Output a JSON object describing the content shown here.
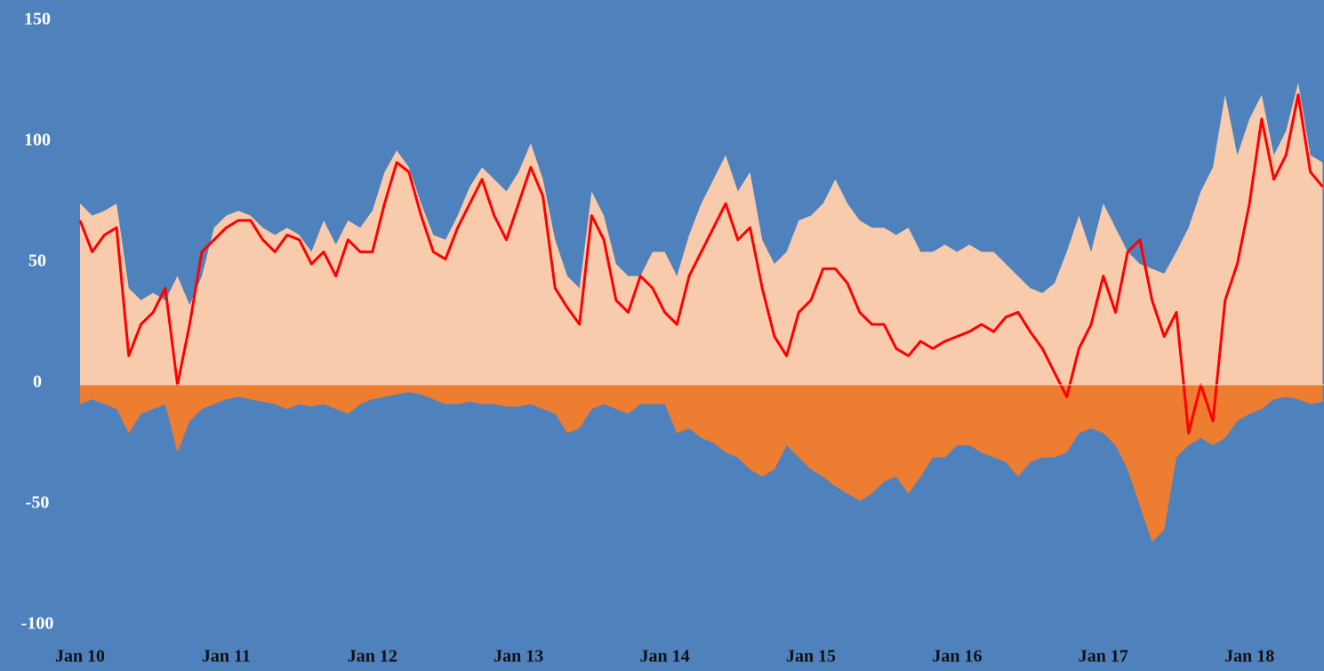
{
  "chart_data": {
    "type": "area-line",
    "categories": [
      "Jan 10",
      null,
      null,
      null,
      null,
      null,
      null,
      null,
      null,
      null,
      null,
      null,
      "Jan 11",
      null,
      null,
      null,
      null,
      null,
      null,
      null,
      null,
      null,
      null,
      null,
      "Jan 12",
      null,
      null,
      null,
      null,
      null,
      null,
      null,
      null,
      null,
      null,
      null,
      "Jan 13",
      null,
      null,
      null,
      null,
      null,
      null,
      null,
      null,
      null,
      null,
      null,
      "Jan 14",
      null,
      null,
      null,
      null,
      null,
      null,
      null,
      null,
      null,
      null,
      null,
      "Jan 15",
      null,
      null,
      null,
      null,
      null,
      null,
      null,
      null,
      null,
      null,
      null,
      "Jan 16",
      null,
      null,
      null,
      null,
      null,
      null,
      null,
      null,
      null,
      null,
      null,
      "Jan 17",
      null,
      null,
      null,
      null,
      null,
      null,
      null,
      null,
      null,
      null,
      null,
      "Jan 18",
      null,
      null,
      null,
      null,
      null,
      null
    ],
    "series": [
      {
        "kind": "area",
        "color": "#f8cbad",
        "values": [
          75,
          70,
          72,
          75,
          40,
          35,
          38,
          35,
          45,
          33,
          45,
          65,
          70,
          72,
          70,
          65,
          62,
          65,
          62,
          55,
          68,
          58,
          68,
          65,
          72,
          88,
          97,
          90,
          75,
          62,
          60,
          70,
          82,
          90,
          85,
          80,
          88,
          100,
          85,
          60,
          45,
          40,
          80,
          70,
          50,
          45,
          45,
          55,
          55,
          45,
          62,
          75,
          85,
          95,
          80,
          88,
          60,
          50,
          55,
          68,
          70,
          75,
          85,
          75,
          68,
          65,
          65,
          62,
          65,
          55,
          55,
          58,
          55,
          58,
          55,
          55,
          50,
          45,
          40,
          38,
          42,
          55,
          70,
          55,
          75,
          65,
          55,
          50,
          48,
          46,
          55,
          65,
          80,
          90,
          120,
          95,
          110,
          120,
          95,
          105,
          125,
          95,
          92
        ]
      },
      {
        "kind": "area",
        "color": "#ed7d31",
        "values": [
          -8,
          -6,
          -8,
          -10,
          -20,
          -12,
          -10,
          -8,
          -28,
          -15,
          -10,
          -8,
          -6,
          -5,
          -6,
          -7,
          -8,
          -10,
          -8,
          -9,
          -8,
          -10,
          -12,
          -8,
          -6,
          -5,
          -4,
          -3,
          -4,
          -6,
          -8,
          -8,
          -7,
          -8,
          -8,
          -9,
          -9,
          -8,
          -10,
          -12,
          -20,
          -18,
          -10,
          -8,
          -10,
          -12,
          -8,
          -8,
          -8,
          -20,
          -18,
          -22,
          -24,
          -28,
          -30,
          -35,
          -38,
          -35,
          -25,
          -30,
          -35,
          -38,
          -42,
          -45,
          -48,
          -45,
          -40,
          -38,
          -45,
          -38,
          -30,
          -30,
          -25,
          -25,
          -28,
          -30,
          -32,
          -38,
          -32,
          -30,
          -30,
          -28,
          -20,
          -18,
          -20,
          -25,
          -35,
          -50,
          -65,
          -60,
          -30,
          -25,
          -22,
          -25,
          -22,
          -15,
          -12,
          -10,
          -6,
          -5,
          -6,
          -8,
          -7
        ]
      },
      {
        "kind": "line",
        "color": "#ff0000",
        "values": [
          68,
          55,
          62,
          65,
          12,
          25,
          30,
          40,
          0,
          25,
          55,
          60,
          65,
          68,
          68,
          60,
          55,
          62,
          60,
          50,
          55,
          45,
          60,
          55,
          55,
          75,
          92,
          88,
          70,
          55,
          52,
          65,
          75,
          85,
          70,
          60,
          75,
          90,
          78,
          40,
          32,
          25,
          70,
          60,
          35,
          30,
          45,
          40,
          30,
          25,
          45,
          55,
          65,
          75,
          60,
          65,
          40,
          20,
          12,
          30,
          35,
          48,
          48,
          42,
          30,
          25,
          25,
          15,
          12,
          18,
          15,
          18,
          20,
          22,
          25,
          22,
          28,
          30,
          22,
          15,
          5,
          -5,
          15,
          25,
          45,
          30,
          55,
          60,
          35,
          20,
          30,
          -20,
          0,
          -15,
          35,
          50,
          75,
          110,
          85,
          95,
          120,
          88,
          82
        ]
      }
    ],
    "ylim": [
      -100,
      150
    ],
    "yticks": [
      -100,
      -50,
      0,
      50,
      100,
      150
    ]
  }
}
